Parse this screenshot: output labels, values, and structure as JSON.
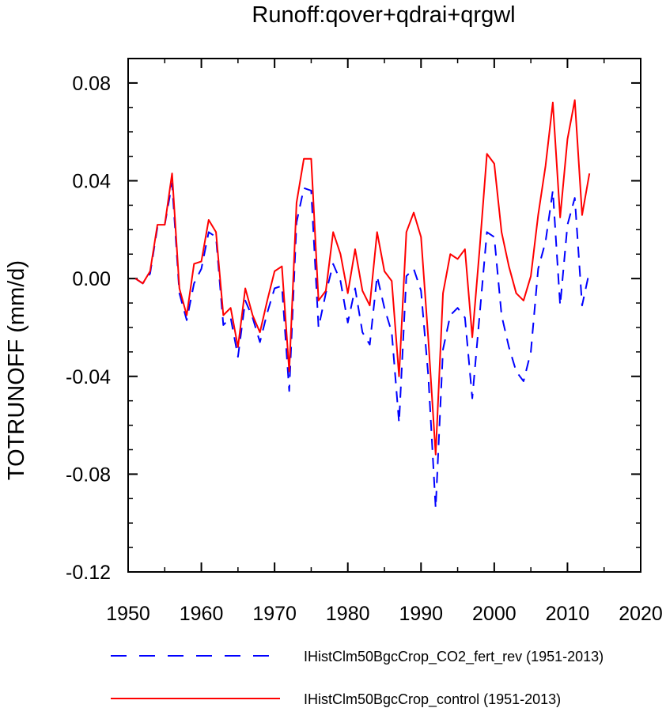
{
  "chart_data": {
    "type": "line",
    "title": "Runoff:qover+qdrai+qrgwl",
    "xlabel": "",
    "ylabel": "TOTRUNOFF  (mm/d)",
    "xlim": [
      1950,
      2020
    ],
    "ylim": [
      -0.12,
      0.09
    ],
    "xticks": [
      1950,
      1960,
      1970,
      1980,
      1990,
      2000,
      2010,
      2020
    ],
    "xtick_labels": [
      "1950",
      "1960",
      "1970",
      "1980",
      "1990",
      "2000",
      "2010",
      "2020"
    ],
    "yticks": [
      0.08,
      0.04,
      0.0,
      -0.04,
      -0.08,
      -0.12
    ],
    "ytick_labels": [
      "0.08",
      "0.04",
      "0.00",
      "-0.04",
      "-0.08",
      "-0.12"
    ],
    "grid": false,
    "legend_position": "bottom",
    "x": [
      1951,
      1952,
      1953,
      1954,
      1955,
      1956,
      1957,
      1958,
      1959,
      1960,
      1961,
      1962,
      1963,
      1964,
      1965,
      1966,
      1967,
      1968,
      1969,
      1970,
      1971,
      1972,
      1973,
      1974,
      1975,
      1976,
      1977,
      1978,
      1979,
      1980,
      1981,
      1982,
      1983,
      1984,
      1985,
      1986,
      1987,
      1988,
      1989,
      1990,
      1991,
      1992,
      1993,
      1994,
      1995,
      1996,
      1997,
      1998,
      1999,
      2000,
      2001,
      2002,
      2003,
      2004,
      2005,
      2006,
      2007,
      2008,
      2009,
      2010,
      2011,
      2012,
      2013
    ],
    "series": [
      {
        "name": "IHistClm50BgcCrop_CO2_fert_rev (1951-2013)",
        "color": "#0000ff",
        "dash": "dashed",
        "values": [
          0.0,
          -0.002,
          0.002,
          0.021,
          0.022,
          0.039,
          -0.006,
          -0.017,
          -0.002,
          0.004,
          0.019,
          0.017,
          -0.019,
          -0.016,
          -0.032,
          -0.009,
          -0.016,
          -0.026,
          -0.014,
          -0.004,
          -0.003,
          -0.046,
          0.023,
          0.037,
          0.036,
          -0.02,
          -0.006,
          0.006,
          -0.001,
          -0.018,
          -0.004,
          -0.022,
          -0.027,
          0.001,
          -0.012,
          -0.022,
          -0.059,
          0.001,
          0.004,
          -0.005,
          -0.04,
          -0.094,
          -0.029,
          -0.015,
          -0.012,
          -0.016,
          -0.049,
          -0.015,
          0.019,
          0.017,
          -0.015,
          -0.028,
          -0.038,
          -0.042,
          -0.03,
          0.004,
          0.015,
          0.036,
          -0.011,
          0.022,
          0.033,
          -0.011,
          0.003
        ]
      },
      {
        "name": "IHistClm50BgcCrop_control (1951-2013)",
        "color": "#ff0000",
        "dash": "solid",
        "values": [
          0.0,
          -0.002,
          0.003,
          0.022,
          0.022,
          0.043,
          -0.004,
          -0.015,
          0.006,
          0.007,
          0.024,
          0.019,
          -0.015,
          -0.012,
          -0.028,
          -0.004,
          -0.015,
          -0.022,
          -0.009,
          0.003,
          0.005,
          -0.038,
          0.031,
          0.049,
          0.049,
          -0.009,
          -0.005,
          0.019,
          0.01,
          -0.006,
          0.012,
          -0.005,
          -0.011,
          0.019,
          0.003,
          -0.001,
          -0.04,
          0.019,
          0.027,
          0.017,
          -0.025,
          -0.072,
          -0.006,
          0.01,
          0.008,
          0.012,
          -0.024,
          0.012,
          0.051,
          0.047,
          0.019,
          0.005,
          -0.006,
          -0.009,
          0.001,
          0.026,
          0.046,
          0.072,
          0.025,
          0.057,
          0.073,
          0.026,
          0.043
        ]
      }
    ]
  }
}
